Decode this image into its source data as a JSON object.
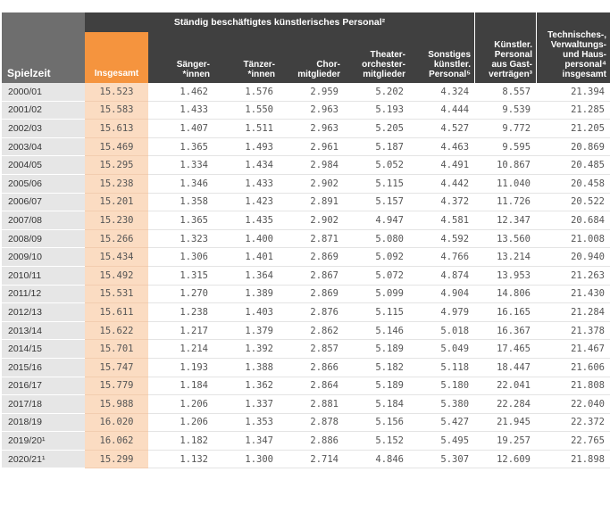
{
  "headers": {
    "spielzeit": "Spielzeit",
    "super_label": "Ständig beschäftigtes künstlerisches Personal²",
    "insgesamt": "Insgesamt",
    "saenger": "Sänger-*innen",
    "taenzer": "Tänzer-*innen",
    "chor": "Chor-mitglieder",
    "orchester": "Theater-orchester-mitglieder",
    "sonstiges": "Sonstiges künstler. Personal⁵",
    "gast": "Künstler. Personal aus Gast-verträgen³",
    "technisch": "Technisches-, Verwaltungs- und Haus-personal⁴ insgesamt"
  },
  "rows": [
    {
      "spielzeit": "2000/01",
      "insgesamt": "15.523",
      "saenger": "1.462",
      "taenzer": "1.576",
      "chor": "2.959",
      "orchester": "5.202",
      "sonstiges": "4.324",
      "gast": "8.557",
      "technisch": "21.394"
    },
    {
      "spielzeit": "2001/02",
      "insgesamt": "15.583",
      "saenger": "1.433",
      "taenzer": "1.550",
      "chor": "2.963",
      "orchester": "5.193",
      "sonstiges": "4.444",
      "gast": "9.539",
      "technisch": "21.285"
    },
    {
      "spielzeit": "2002/03",
      "insgesamt": "15.613",
      "saenger": "1.407",
      "taenzer": "1.511",
      "chor": "2.963",
      "orchester": "5.205",
      "sonstiges": "4.527",
      "gast": "9.772",
      "technisch": "21.205"
    },
    {
      "spielzeit": "2003/04",
      "insgesamt": "15.469",
      "saenger": "1.365",
      "taenzer": "1.493",
      "chor": "2.961",
      "orchester": "5.187",
      "sonstiges": "4.463",
      "gast": "9.595",
      "technisch": "20.869"
    },
    {
      "spielzeit": "2004/05",
      "insgesamt": "15.295",
      "saenger": "1.334",
      "taenzer": "1.434",
      "chor": "2.984",
      "orchester": "5.052",
      "sonstiges": "4.491",
      "gast": "10.867",
      "technisch": "20.485"
    },
    {
      "spielzeit": "2005/06",
      "insgesamt": "15.238",
      "saenger": "1.346",
      "taenzer": "1.433",
      "chor": "2.902",
      "orchester": "5.115",
      "sonstiges": "4.442",
      "gast": "11.040",
      "technisch": "20.458"
    },
    {
      "spielzeit": "2006/07",
      "insgesamt": "15.201",
      "saenger": "1.358",
      "taenzer": "1.423",
      "chor": "2.891",
      "orchester": "5.157",
      "sonstiges": "4.372",
      "gast": "11.726",
      "technisch": "20.522"
    },
    {
      "spielzeit": "2007/08",
      "insgesamt": "15.230",
      "saenger": "1.365",
      "taenzer": "1.435",
      "chor": "2.902",
      "orchester": "4.947",
      "sonstiges": "4.581",
      "gast": "12.347",
      "technisch": "20.684"
    },
    {
      "spielzeit": "2008/09",
      "insgesamt": "15.266",
      "saenger": "1.323",
      "taenzer": "1.400",
      "chor": "2.871",
      "orchester": "5.080",
      "sonstiges": "4.592",
      "gast": "13.560",
      "technisch": "21.008"
    },
    {
      "spielzeit": "2009/10",
      "insgesamt": "15.434",
      "saenger": "1.306",
      "taenzer": "1.401",
      "chor": "2.869",
      "orchester": "5.092",
      "sonstiges": "4.766",
      "gast": "13.214",
      "technisch": "20.940"
    },
    {
      "spielzeit": "2010/11",
      "insgesamt": "15.492",
      "saenger": "1.315",
      "taenzer": "1.364",
      "chor": "2.867",
      "orchester": "5.072",
      "sonstiges": "4.874",
      "gast": "13.953",
      "technisch": "21.263"
    },
    {
      "spielzeit": "2011/12",
      "insgesamt": "15.531",
      "saenger": "1.270",
      "taenzer": "1.389",
      "chor": "2.869",
      "orchester": "5.099",
      "sonstiges": "4.904",
      "gast": "14.806",
      "technisch": "21.430"
    },
    {
      "spielzeit": "2012/13",
      "insgesamt": "15.611",
      "saenger": "1.238",
      "taenzer": "1.403",
      "chor": "2.876",
      "orchester": "5.115",
      "sonstiges": "4.979",
      "gast": "16.165",
      "technisch": "21.284"
    },
    {
      "spielzeit": "2013/14",
      "insgesamt": "15.622",
      "saenger": "1.217",
      "taenzer": "1.379",
      "chor": "2.862",
      "orchester": "5.146",
      "sonstiges": "5.018",
      "gast": "16.367",
      "technisch": "21.378"
    },
    {
      "spielzeit": "2014/15",
      "insgesamt": "15.701",
      "saenger": "1.214",
      "taenzer": "1.392",
      "chor": "2.857",
      "orchester": "5.189",
      "sonstiges": "5.049",
      "gast": "17.465",
      "technisch": "21.467"
    },
    {
      "spielzeit": "2015/16",
      "insgesamt": "15.747",
      "saenger": "1.193",
      "taenzer": "1.388",
      "chor": "2.866",
      "orchester": "5.182",
      "sonstiges": "5.118",
      "gast": "18.447",
      "technisch": "21.606"
    },
    {
      "spielzeit": "2016/17",
      "insgesamt": "15.779",
      "saenger": "1.184",
      "taenzer": "1.362",
      "chor": "2.864",
      "orchester": "5.189",
      "sonstiges": "5.180",
      "gast": "22.041",
      "technisch": "21.808"
    },
    {
      "spielzeit": "2017/18",
      "insgesamt": "15.988",
      "saenger": "1.206",
      "taenzer": "1.337",
      "chor": "2.881",
      "orchester": "5.184",
      "sonstiges": "5.380",
      "gast": "22.284",
      "technisch": "22.040"
    },
    {
      "spielzeit": "2018/19",
      "insgesamt": "16.020",
      "saenger": "1.206",
      "taenzer": "1.353",
      "chor": "2.878",
      "orchester": "5.156",
      "sonstiges": "5.427",
      "gast": "21.945",
      "technisch": "22.372"
    },
    {
      "spielzeit": "2019/20¹",
      "insgesamt": "16.062",
      "saenger": "1.182",
      "taenzer": "1.347",
      "chor": "2.886",
      "orchester": "5.152",
      "sonstiges": "5.495",
      "gast": "19.257",
      "technisch": "22.765"
    },
    {
      "spielzeit": "2020/21¹",
      "insgesamt": "15.299",
      "saenger": "1.132",
      "taenzer": "1.300",
      "chor": "2.714",
      "orchester": "4.846",
      "sonstiges": "5.307",
      "gast": "12.609",
      "technisch": "21.898"
    }
  ]
}
